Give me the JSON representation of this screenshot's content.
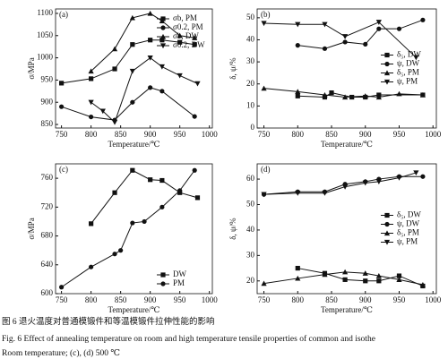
{
  "chart_data": [
    {
      "type": "line",
      "panel_label": "(a)",
      "xlabel": "Temperature/℃",
      "ylabel": "σ/MPa",
      "xlim": [
        740,
        1005
      ],
      "xticks": [
        750,
        800,
        850,
        900,
        950,
        1000
      ],
      "ylim": [
        842,
        1110
      ],
      "yticks": [
        850,
        900,
        950,
        1000,
        1050,
        1100
      ],
      "legend": "upper right",
      "series": [
        {
          "name": "σb, PM",
          "color": "#111",
          "marker": "square",
          "x": [
            750,
            800,
            840,
            870,
            900,
            920,
            950,
            975
          ],
          "values": [
            943,
            953,
            975,
            1030,
            1040,
            1040,
            1035,
            1030
          ]
        },
        {
          "name": "σ0.2, PM",
          "color": "#111",
          "marker": "circle",
          "x": [
            750,
            800,
            840,
            870,
            900,
            920,
            975
          ],
          "values": [
            890,
            867,
            860,
            900,
            933,
            925,
            868
          ]
        },
        {
          "name": "σb, DW",
          "color": "#111",
          "marker": "triangle-up",
          "x": [
            800,
            840,
            870,
            900,
            920,
            950,
            975
          ],
          "values": [
            970,
            1020,
            1090,
            1100,
            1083,
            1050,
            1045
          ]
        },
        {
          "name": "σ0.2, DW",
          "color": "#111",
          "marker": "triangle-down",
          "x": [
            800,
            820,
            840,
            870,
            900,
            920,
            950,
            980
          ],
          "values": [
            900,
            880,
            855,
            970,
            1000,
            980,
            960,
            942
          ]
        }
      ]
    },
    {
      "type": "line",
      "panel_label": "(b)",
      "xlabel": "Temperature/℃",
      "ylabel": "δ, ψ/%",
      "xlim": [
        740,
        1005
      ],
      "xticks": [
        750,
        800,
        850,
        900,
        950,
        1000
      ],
      "ylim": [
        0,
        54
      ],
      "yticks": [
        0,
        10,
        20,
        30,
        40,
        50
      ],
      "legend": "center right",
      "series": [
        {
          "name": "δ₅, DW",
          "color": "#111",
          "marker": "square",
          "x": [
            800,
            840,
            850,
            880,
            900,
            920,
            985
          ],
          "values": [
            14.5,
            14,
            16,
            14,
            14,
            15,
            15
          ]
        },
        {
          "name": "ψ, DW",
          "color": "#111",
          "marker": "circle",
          "x": [
            800,
            840,
            870,
            900,
            920,
            950,
            985
          ],
          "values": [
            37.5,
            36,
            39,
            38,
            45,
            45,
            49
          ]
        },
        {
          "name": "δ₅, PM",
          "color": "#111",
          "marker": "triangle-up",
          "x": [
            750,
            800,
            840,
            870,
            900,
            920,
            950,
            985
          ],
          "values": [
            18,
            16.5,
            15,
            14,
            14.5,
            14,
            15.5,
            15
          ]
        },
        {
          "name": "ψ, PM",
          "color": "#111",
          "marker": "triangle-down",
          "x": [
            750,
            800,
            840,
            870,
            920,
            975
          ],
          "values": [
            47.5,
            47,
            47,
            41.5,
            48,
            32
          ]
        }
      ]
    },
    {
      "type": "line",
      "panel_label": "(c)",
      "xlabel": "Temperature/℃",
      "ylabel": "σ/MPa",
      "xlim": [
        740,
        1005
      ],
      "xticks": [
        750,
        800,
        850,
        900,
        950,
        1000
      ],
      "ylim": [
        600,
        780
      ],
      "yticks": [
        600,
        640,
        680,
        720,
        760
      ],
      "legend": "lower right",
      "series": [
        {
          "name": "DW",
          "color": "#111",
          "marker": "square",
          "x": [
            800,
            840,
            870,
            900,
            920,
            950,
            980
          ],
          "values": [
            697,
            740,
            771,
            758,
            757,
            740,
            733
          ]
        },
        {
          "name": "PM",
          "color": "#111",
          "marker": "circle",
          "x": [
            750,
            800,
            840,
            850,
            870,
            890,
            920,
            950,
            975
          ],
          "values": [
            609,
            637,
            655,
            660,
            698,
            700,
            720,
            743,
            771
          ]
        }
      ]
    },
    {
      "type": "line",
      "panel_label": "(d)",
      "xlabel": "Temperature/℃",
      "ylabel": "δ, ψ/%",
      "xlim": [
        740,
        1005
      ],
      "xticks": [
        750,
        800,
        850,
        900,
        950,
        1000
      ],
      "ylim": [
        15,
        66
      ],
      "yticks": [
        20,
        30,
        40,
        50,
        60
      ],
      "legend": "center right",
      "series": [
        {
          "name": "δ₅, DW",
          "color": "#111",
          "marker": "square",
          "x": [
            800,
            840,
            870,
            900,
            920,
            950,
            985
          ],
          "values": [
            25,
            23,
            20.5,
            20,
            20,
            22,
            18
          ]
        },
        {
          "name": "ψ, DW",
          "color": "#111",
          "marker": "circle",
          "x": [
            750,
            800,
            840,
            870,
            900,
            920,
            950,
            985
          ],
          "values": [
            54,
            55,
            55,
            58,
            59,
            60,
            61,
            61
          ]
        },
        {
          "name": "δ₅, PM",
          "color": "#111",
          "marker": "triangle-up",
          "x": [
            750,
            800,
            840,
            870,
            900,
            920,
            950,
            985
          ],
          "values": [
            19,
            21,
            22.5,
            23.5,
            23,
            22,
            20.5,
            18.5
          ]
        },
        {
          "name": "ψ, PM",
          "color": "#111",
          "marker": "triangle-down",
          "x": [
            750,
            800,
            840,
            870,
            900,
            920,
            950,
            975
          ],
          "values": [
            54,
            54.5,
            54.5,
            57,
            58.5,
            59,
            60.5,
            62.5
          ]
        }
      ]
    }
  ],
  "caption": {
    "cn": "图 6   退火温度对普通模锻件和等温模锻件拉伸性能的影响",
    "en": "Fig. 6    Effect of annealing temperature on room and high temperature tensile properties of common and isothe",
    "en2": "Room temperature; (c), (d) 500 ℃"
  }
}
